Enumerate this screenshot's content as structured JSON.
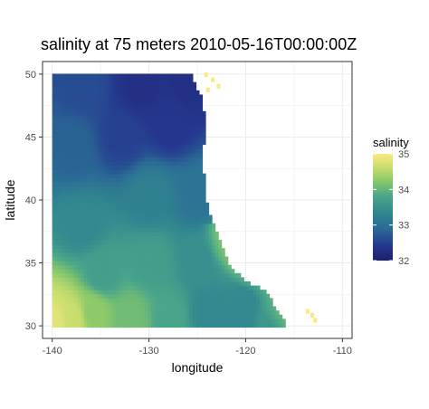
{
  "chart_data": {
    "type": "heatmap",
    "title": "salinity at 75 meters 2010-05-16T00:00:00Z",
    "xlabel": "longitude",
    "ylabel": "latitude",
    "xlim": [
      -141,
      -109
    ],
    "ylim": [
      29,
      51
    ],
    "x_ticks": [
      -140,
      -130,
      -120,
      -110
    ],
    "y_ticks": [
      30,
      35,
      40,
      45,
      50
    ],
    "x_tick_labels": [
      "-140",
      "-130",
      "-120",
      "-110"
    ],
    "y_tick_labels": [
      "30",
      "35",
      "40",
      "45",
      "50"
    ],
    "grid": true,
    "legend": {
      "title": "salinity",
      "placement": "right",
      "ticks": [
        32,
        33,
        34,
        35
      ],
      "tick_labels": [
        "32",
        "33",
        "34",
        "35"
      ],
      "range": [
        32,
        35
      ]
    },
    "colors": {
      "palette": [
        "#1b1f6b",
        "#25388f",
        "#2a6a96",
        "#31878f",
        "#4aa68a",
        "#86c76a",
        "#c7dd6e",
        "#fbe983"
      ],
      "panel_background": "#ffffff",
      "grid": "#ebebeb",
      "panel_border": "#333333"
    },
    "data": {
      "lon_range": [
        -140,
        -113
      ],
      "lat_range": [
        29.9,
        50
      ],
      "resolution_deg": 0.33,
      "coast_boundary_east_lon_by_lat": [
        [
          30,
          -116
        ],
        [
          31,
          -117
        ],
        [
          32,
          -117.5
        ],
        [
          32.7,
          -118.2
        ],
        [
          33.3,
          -120
        ],
        [
          34,
          -121
        ],
        [
          35,
          -122
        ],
        [
          36,
          -122.5
        ],
        [
          37,
          -123
        ],
        [
          38,
          -123.5
        ],
        [
          39,
          -124
        ],
        [
          40,
          -124.3
        ],
        [
          42,
          -124.5
        ],
        [
          44,
          -124.5
        ],
        [
          46,
          -124.3
        ],
        [
          48,
          -124.7
        ],
        [
          50,
          -126
        ]
      ],
      "salinity_samples": [
        {
          "lon": -140,
          "lat": 30,
          "value": 34.8
        },
        {
          "lon": -138,
          "lat": 30.5,
          "value": 34.6
        },
        {
          "lon": -136,
          "lat": 31,
          "value": 34.2
        },
        {
          "lon": -132,
          "lat": 30.5,
          "value": 34.0
        },
        {
          "lon": -128,
          "lat": 30.5,
          "value": 33.7
        },
        {
          "lon": -124,
          "lat": 31,
          "value": 33.3
        },
        {
          "lon": -120,
          "lat": 31,
          "value": 33.3
        },
        {
          "lon": -118,
          "lat": 30.5,
          "value": 33.5
        },
        {
          "lon": -135,
          "lat": 34,
          "value": 33.6
        },
        {
          "lon": -130,
          "lat": 35,
          "value": 33.6
        },
        {
          "lon": -125,
          "lat": 35,
          "value": 33.4
        },
        {
          "lon": -122,
          "lat": 36.5,
          "value": 33.7
        },
        {
          "lon": -137,
          "lat": 38,
          "value": 33.3
        },
        {
          "lon": -130,
          "lat": 40,
          "value": 33.2
        },
        {
          "lon": -125,
          "lat": 40,
          "value": 33.0
        },
        {
          "lon": -138,
          "lat": 44,
          "value": 32.8
        },
        {
          "lon": -133,
          "lat": 45,
          "value": 32.5
        },
        {
          "lon": -128,
          "lat": 46,
          "value": 32.4
        },
        {
          "lon": -137,
          "lat": 49,
          "value": 32.6
        },
        {
          "lon": -131,
          "lat": 49,
          "value": 32.3
        },
        {
          "lon": -126,
          "lat": 49,
          "value": 32.3
        }
      ],
      "coastal_high_cells": [
        {
          "lon": -124.3,
          "lat": 49.8,
          "value": 35
        },
        {
          "lon": -123.6,
          "lat": 49.4,
          "value": 35
        },
        {
          "lon": -123.0,
          "lat": 48.9,
          "value": 35
        },
        {
          "lon": -124.1,
          "lat": 48.6,
          "value": 35
        },
        {
          "lon": -113.8,
          "lat": 31.0,
          "value": 35
        },
        {
          "lon": -113.3,
          "lat": 30.7,
          "value": 35
        },
        {
          "lon": -113.0,
          "lat": 30.3,
          "value": 35
        }
      ]
    }
  }
}
